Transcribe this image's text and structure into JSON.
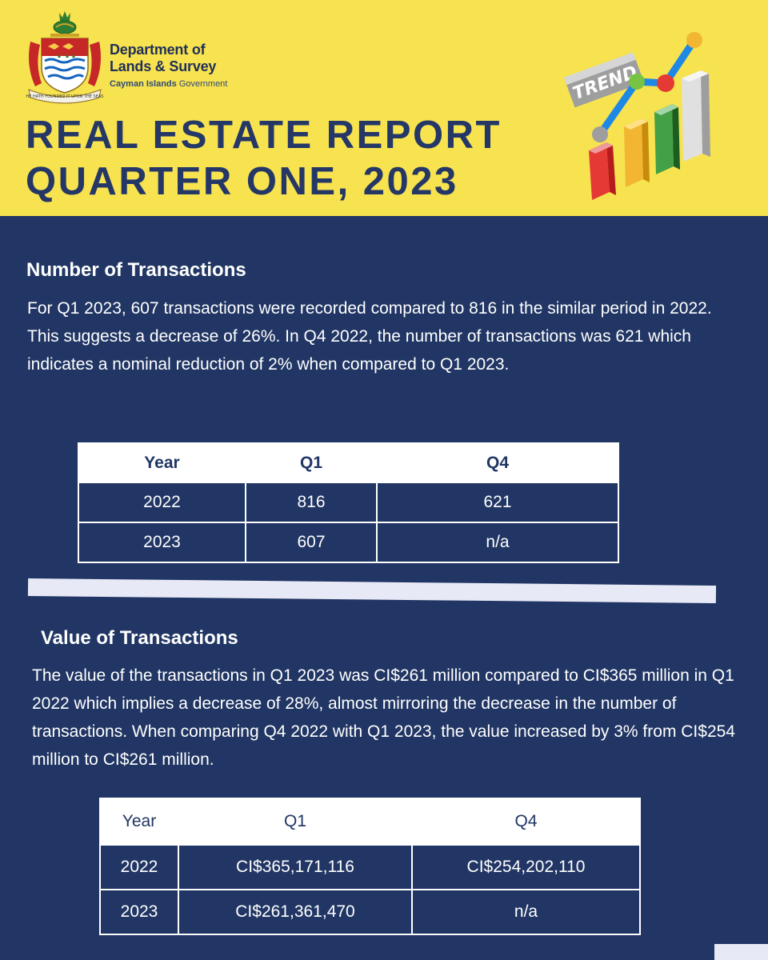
{
  "header": {
    "dept_line1": "Department of",
    "dept_line2": "Lands & Survey",
    "gov_bold": "Cayman Islands",
    "gov_rest": "Government",
    "title_line1": "REAL ESTATE REPORT",
    "title_line2": "QUARTER ONE, 2023",
    "crest_motto": "HE HATH FOUNDED IT UPON THE SEAS",
    "trend_sign": "TREND",
    "colors": {
      "background": "#f7e24f",
      "title": "#243766"
    }
  },
  "section1": {
    "heading": "Number of Transactions",
    "paragraph": "For Q1 2023, 607 transactions were recorded compared to 816 in the similar period in 2022. This suggests a decrease of 26%. In Q4 2022, the number of transactions was 621 which indicates a nominal reduction of 2% when compared to Q1 2023.",
    "table": {
      "headers": [
        "Year",
        "Q1",
        "Q4"
      ],
      "rows": [
        [
          "2022",
          "816",
          "621"
        ],
        [
          "2023",
          "607",
          "n/a"
        ]
      ]
    }
  },
  "section2": {
    "heading": "Value of Transactions",
    "paragraph": "The value of the transactions in Q1 2023 was CI$261 million compared to CI$365 million in Q1 2022 which implies a decrease of 28%, almost mirroring the decrease in the number of transactions. When comparing Q4 2022 with Q1 2023,  the value increased by 3% from CI$254 million to CI$261 million.",
    "table": {
      "headers": [
        "Year",
        "Q1",
        "Q4"
      ],
      "rows": [
        [
          "2022",
          "CI$365,171,116",
          "CI$254,202,110"
        ],
        [
          "2023",
          "CI$261,361,470",
          "n/a"
        ]
      ]
    }
  },
  "colors": {
    "page_background": "#213664",
    "text": "#ffffff",
    "divider": "#e8e9f6"
  }
}
